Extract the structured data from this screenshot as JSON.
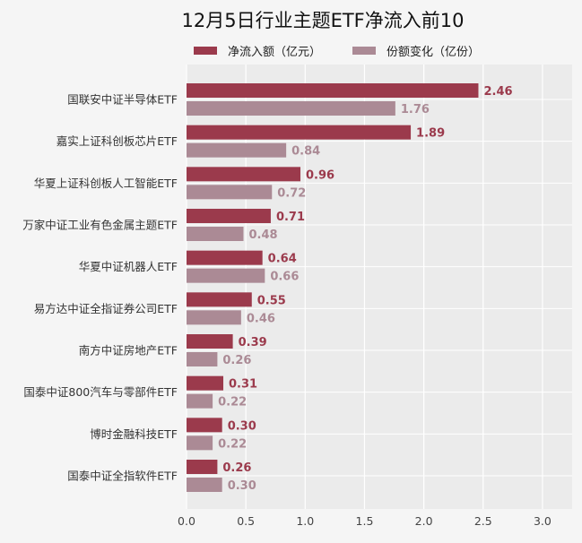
{
  "chart_data": {
    "type": "bar",
    "orientation": "horizontal",
    "title": "12月5日行业主题ETF净流入前10",
    "categories": [
      "国联安中证半导体ETF",
      "嘉实上证科创板芯片ETF",
      "华夏上证科创板人工智能ETF",
      "万家中证工业有色金属主题ETF",
      "华夏中证机器人ETF",
      "易方达中证全指证券公司ETF",
      "南方中证房地产ETF",
      "国泰中证800汽车与零部件ETF",
      "博时金融科技ETF",
      "国泰中证全指软件ETF"
    ],
    "series": [
      {
        "name": "净流入额（亿元）",
        "color": "#9b3a4c",
        "values": [
          2.46,
          1.89,
          0.96,
          0.71,
          0.64,
          0.55,
          0.39,
          0.31,
          0.3,
          0.26
        ],
        "labels": [
          "2.46",
          "1.89",
          "0.96",
          "0.71",
          "0.64",
          "0.55",
          "0.39",
          "0.31",
          "0.30",
          "0.26"
        ]
      },
      {
        "name": "份额变化（亿份）",
        "color": "#ab8a95",
        "values": [
          1.76,
          0.84,
          0.72,
          0.48,
          0.66,
          0.46,
          0.26,
          0.22,
          0.22,
          0.3
        ],
        "labels": [
          "1.76",
          "0.84",
          "0.72",
          "0.48",
          "0.66",
          "0.46",
          "0.26",
          "0.22",
          "0.22",
          "0.30"
        ]
      }
    ],
    "xticks": [
      "0.0",
      "0.5",
      "1.0",
      "1.5",
      "2.0",
      "2.5",
      "3.0"
    ],
    "xtick_values": [
      0,
      0.5,
      1,
      1.5,
      2,
      2.5,
      3
    ],
    "xlim": [
      0,
      3.25
    ],
    "grid": true,
    "legend": "top"
  }
}
